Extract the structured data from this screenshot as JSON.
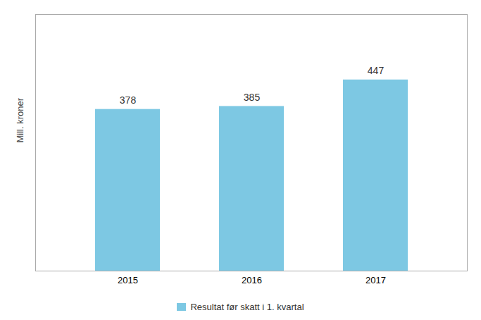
{
  "chart_data": {
    "type": "bar",
    "categories": [
      "2015",
      "2016",
      "2017"
    ],
    "series": [
      {
        "name": "Resultat før skatt i 1. kvartal",
        "color": "#7DC8E3",
        "values": [
          378,
          385,
          447
        ]
      }
    ],
    "ylabel": "Mill. kroner",
    "ylim": [
      0,
      600
    ],
    "data_labels": true,
    "tick_labels": "x",
    "legend": "bottom"
  }
}
